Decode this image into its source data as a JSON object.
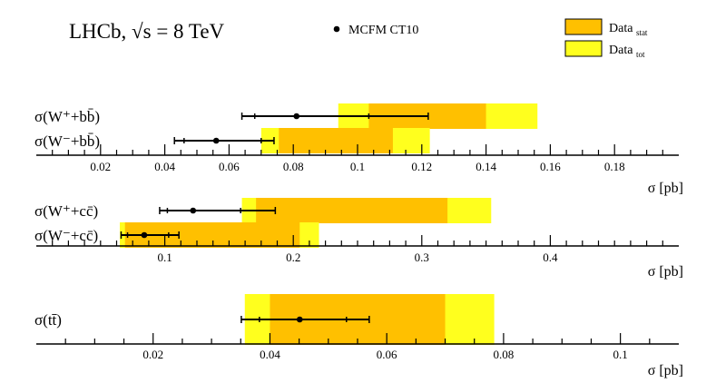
{
  "header": {
    "experiment": "LHCb, ",
    "energy": "√s = 8 TeV"
  },
  "legend": {
    "prediction": "MCFM CT10",
    "stat_label": "Data",
    "stat_sub": "stat",
    "tot_label": "Data",
    "tot_sub": "tot"
  },
  "colors": {
    "stat": "#ffc000",
    "tot": "#ffff1e",
    "line": "#000000"
  },
  "chart_data": [
    {
      "type": "error-bar-comparison",
      "panel": "bb",
      "xlabel": "σ [pb]",
      "xlim": [
        0.0,
        0.2
      ],
      "major_ticks": [
        0.02,
        0.04,
        0.06,
        0.08,
        0.1,
        0.12,
        0.14,
        0.16,
        0.18
      ],
      "tick_labels": [
        "0.02",
        "0.04",
        "0.06",
        "0.08",
        "0.1",
        "0.12",
        "0.14",
        "0.16",
        "0.18"
      ],
      "minor_step": 0.005,
      "rows": [
        {
          "label": "σ(W⁺+bb̄)",
          "data_stat": [
            0.1035,
            0.14
          ],
          "data_tot": [
            0.094,
            0.156
          ],
          "prediction": 0.081,
          "pred_inner": [
            0.068,
            0.1035
          ],
          "pred_outer": [
            0.064,
            0.122
          ]
        },
        {
          "label": "σ(W⁻+bb̄)",
          "data_stat": [
            0.0755,
            0.111
          ],
          "data_tot": [
            0.07,
            0.1225
          ],
          "prediction": 0.056,
          "pred_inner": [
            0.046,
            0.07
          ],
          "pred_outer": [
            0.043,
            0.074
          ]
        }
      ]
    },
    {
      "type": "error-bar-comparison",
      "panel": "cc",
      "xlabel": "σ [pb]",
      "xlim": [
        0.0,
        0.5
      ],
      "major_ticks": [
        0.1,
        0.2,
        0.3,
        0.4
      ],
      "tick_labels": [
        "0.1",
        "0.2",
        "0.3",
        "0.4"
      ],
      "minor_step": 0.0125,
      "rows": [
        {
          "label": "σ(W⁺+cc̄)",
          "data_stat": [
            0.171,
            0.32
          ],
          "data_tot": [
            0.16,
            0.354
          ],
          "prediction": 0.122,
          "pred_inner": [
            0.102,
            0.159
          ],
          "pred_outer": [
            0.096,
            0.186
          ]
        },
        {
          "label": "σ(W⁻+cc̄)",
          "data_stat": [
            0.069,
            0.205
          ],
          "data_tot": [
            0.065,
            0.22
          ],
          "prediction": 0.084,
          "pred_inner": [
            0.071,
            0.103
          ],
          "pred_outer": [
            0.066,
            0.111
          ]
        }
      ]
    },
    {
      "type": "error-bar-comparison",
      "panel": "tt",
      "xlabel": "σ [pb]",
      "xlim": [
        0.0,
        0.11
      ],
      "major_ticks": [
        0.02,
        0.04,
        0.06,
        0.08,
        0.1
      ],
      "tick_labels": [
        "0.02",
        "0.04",
        "0.06",
        "0.08",
        "0.1"
      ],
      "minor_step": 0.005,
      "rows": [
        {
          "label": "σ(tt̄)",
          "data_stat": [
            0.04,
            0.07
          ],
          "data_tot": [
            0.0357,
            0.0784
          ],
          "prediction": 0.0451,
          "pred_inner": [
            0.0382,
            0.0531
          ],
          "pred_outer": [
            0.0351,
            0.057
          ]
        }
      ]
    }
  ]
}
